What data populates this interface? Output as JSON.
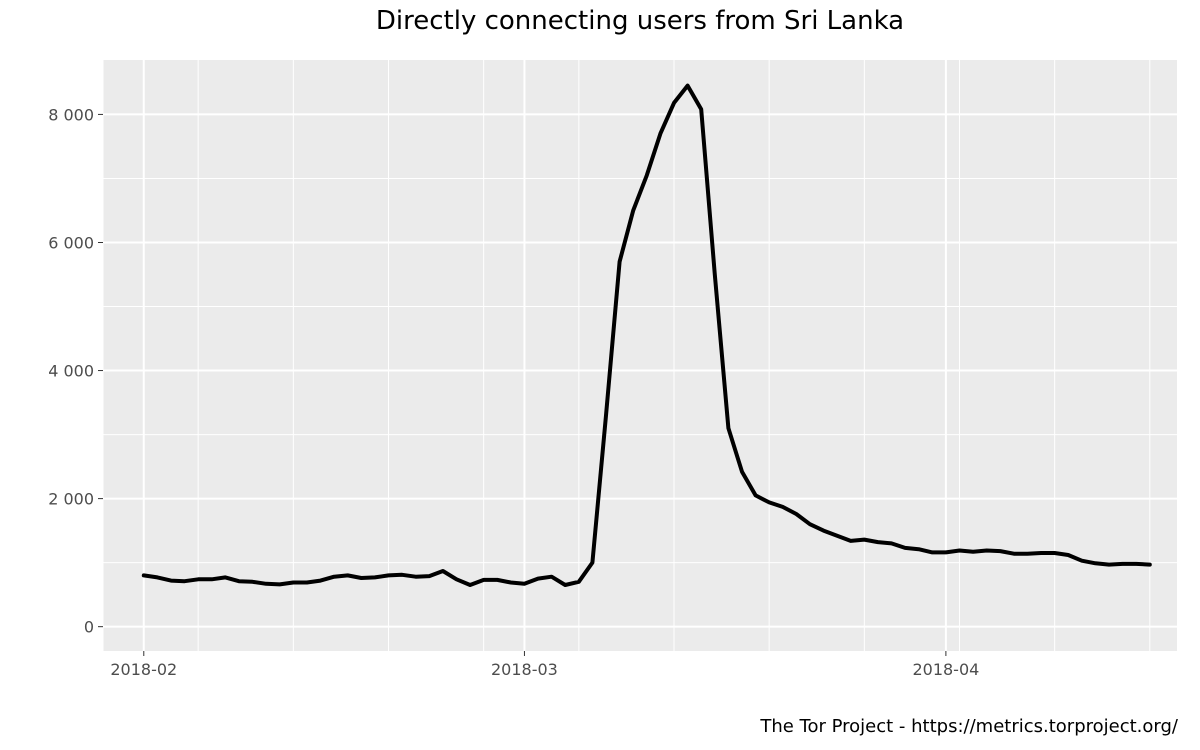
{
  "title": "Directly connecting users from Sri Lanka",
  "credit": "The Tor Project - https://metrics.torproject.org/",
  "chart_data": {
    "type": "line",
    "title": "Directly connecting users from Sri Lanka",
    "xlabel": "",
    "ylabel": "",
    "x_range": [
      "2018-01-29",
      "2018-04-18"
    ],
    "ylim": [
      -380,
      8850
    ],
    "y_ticks": [
      0,
      2000,
      4000,
      6000,
      8000
    ],
    "y_tick_labels": [
      "0",
      "2 000",
      "4 000",
      "6 000",
      "8 000"
    ],
    "x_ticks": [
      "2018-02-01",
      "2018-03-01",
      "2018-04-01"
    ],
    "x_tick_labels": [
      "2018-02",
      "2018-03",
      "2018-04"
    ],
    "grid": true,
    "line_color": "#000000",
    "panel_color": "#ebebeb",
    "series": [
      {
        "x": [
          "2018-02-01",
          "2018-02-02",
          "2018-02-03",
          "2018-02-04",
          "2018-02-05",
          "2018-02-06",
          "2018-02-07",
          "2018-02-08",
          "2018-02-09",
          "2018-02-10",
          "2018-02-11",
          "2018-02-12",
          "2018-02-13",
          "2018-02-14",
          "2018-02-15",
          "2018-02-16",
          "2018-02-17",
          "2018-02-18",
          "2018-02-19",
          "2018-02-20",
          "2018-02-21",
          "2018-02-22",
          "2018-02-23",
          "2018-02-24",
          "2018-02-25",
          "2018-02-26",
          "2018-02-27",
          "2018-02-28",
          "2018-03-01",
          "2018-03-02",
          "2018-03-03",
          "2018-03-04",
          "2018-03-05",
          "2018-03-06",
          "2018-03-07",
          "2018-03-08",
          "2018-03-09",
          "2018-03-10",
          "2018-03-11",
          "2018-03-12",
          "2018-03-13",
          "2018-03-14",
          "2018-03-15",
          "2018-03-16",
          "2018-03-17",
          "2018-03-18",
          "2018-03-19",
          "2018-03-20",
          "2018-03-21",
          "2018-03-22",
          "2018-03-23",
          "2018-03-24",
          "2018-03-25",
          "2018-03-26",
          "2018-03-27",
          "2018-03-28",
          "2018-03-29",
          "2018-03-30",
          "2018-03-31",
          "2018-04-01",
          "2018-04-02",
          "2018-04-03",
          "2018-04-04",
          "2018-04-05",
          "2018-04-06",
          "2018-04-07",
          "2018-04-08",
          "2018-04-09",
          "2018-04-10",
          "2018-04-11",
          "2018-04-12",
          "2018-04-13",
          "2018-04-14",
          "2018-04-15",
          "2018-04-16"
        ],
        "y": [
          800,
          770,
          720,
          710,
          740,
          740,
          770,
          710,
          700,
          670,
          660,
          690,
          690,
          720,
          780,
          800,
          760,
          770,
          800,
          810,
          780,
          790,
          870,
          740,
          650,
          730,
          730,
          690,
          670,
          750,
          780,
          650,
          700,
          1000,
          3300,
          5700,
          6500,
          7050,
          7700,
          8180,
          8450,
          8080,
          5500,
          3100,
          2420,
          2050,
          1940,
          1870,
          1760,
          1600,
          1500,
          1420,
          1340,
          1360,
          1320,
          1300,
          1230,
          1210,
          1160,
          1160,
          1190,
          1170,
          1190,
          1180,
          1140,
          1140,
          1150,
          1150,
          1120,
          1030,
          990,
          970,
          980,
          980,
          970
        ]
      }
    ]
  }
}
